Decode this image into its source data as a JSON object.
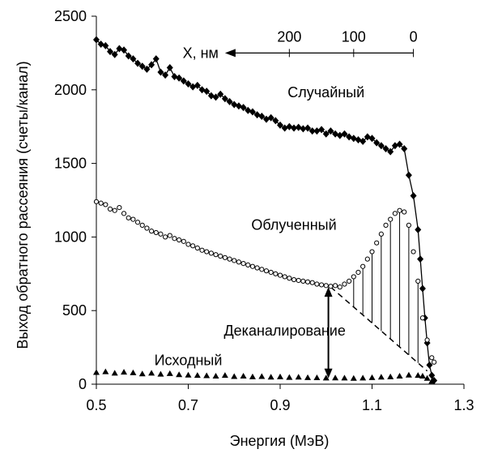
{
  "chart_data": {
    "type": "scatter",
    "title": "",
    "xlabel": "Энергия (МэВ)",
    "ylabel": "Выход обратного рассеяния (счеты/канал)",
    "xlim": [
      0.5,
      1.3
    ],
    "ylim": [
      0,
      2500
    ],
    "x_ticks": [
      "0.5",
      "0.7",
      "0.9",
      "1.1",
      "1.3"
    ],
    "y_ticks": [
      "0",
      "500",
      "1000",
      "1500",
      "2000",
      "2500"
    ],
    "grid": false,
    "series": [
      {
        "name": "Случайный",
        "marker": "diamond",
        "connected": true,
        "points": [
          [
            0.5,
            2340
          ],
          [
            0.51,
            2310
          ],
          [
            0.52,
            2300
          ],
          [
            0.53,
            2260
          ],
          [
            0.54,
            2240
          ],
          [
            0.55,
            2280
          ],
          [
            0.56,
            2270
          ],
          [
            0.57,
            2230
          ],
          [
            0.58,
            2210
          ],
          [
            0.59,
            2180
          ],
          [
            0.6,
            2160
          ],
          [
            0.61,
            2140
          ],
          [
            0.62,
            2170
          ],
          [
            0.63,
            2210
          ],
          [
            0.64,
            2120
          ],
          [
            0.65,
            2100
          ],
          [
            0.66,
            2150
          ],
          [
            0.67,
            2090
          ],
          [
            0.68,
            2080
          ],
          [
            0.69,
            2060
          ],
          [
            0.7,
            2040
          ],
          [
            0.71,
            2020
          ],
          [
            0.72,
            2030
          ],
          [
            0.73,
            2000
          ],
          [
            0.74,
            1990
          ],
          [
            0.75,
            1960
          ],
          [
            0.76,
            1950
          ],
          [
            0.77,
            1970
          ],
          [
            0.78,
            1940
          ],
          [
            0.79,
            1920
          ],
          [
            0.8,
            1900
          ],
          [
            0.81,
            1890
          ],
          [
            0.82,
            1880
          ],
          [
            0.83,
            1860
          ],
          [
            0.84,
            1850
          ],
          [
            0.85,
            1830
          ],
          [
            0.86,
            1820
          ],
          [
            0.87,
            1800
          ],
          [
            0.88,
            1810
          ],
          [
            0.89,
            1790
          ],
          [
            0.9,
            1760
          ],
          [
            0.91,
            1740
          ],
          [
            0.92,
            1750
          ],
          [
            0.93,
            1740
          ],
          [
            0.94,
            1745
          ],
          [
            0.95,
            1735
          ],
          [
            0.96,
            1740
          ],
          [
            0.97,
            1720
          ],
          [
            0.98,
            1720
          ],
          [
            0.99,
            1730
          ],
          [
            1.0,
            1700
          ],
          [
            1.01,
            1720
          ],
          [
            1.02,
            1700
          ],
          [
            1.03,
            1690
          ],
          [
            1.04,
            1700
          ],
          [
            1.05,
            1680
          ],
          [
            1.06,
            1670
          ],
          [
            1.07,
            1660
          ],
          [
            1.08,
            1650
          ],
          [
            1.09,
            1680
          ],
          [
            1.1,
            1670
          ],
          [
            1.11,
            1640
          ],
          [
            1.12,
            1620
          ],
          [
            1.13,
            1600
          ],
          [
            1.14,
            1580
          ],
          [
            1.15,
            1620
          ],
          [
            1.16,
            1630
          ],
          [
            1.17,
            1600
          ],
          [
            1.18,
            1420
          ],
          [
            1.19,
            1280
          ],
          [
            1.2,
            1050
          ],
          [
            1.205,
            850
          ],
          [
            1.21,
            650
          ],
          [
            1.215,
            450
          ],
          [
            1.22,
            280
          ],
          [
            1.225,
            130
          ],
          [
            1.23,
            60
          ],
          [
            1.235,
            25
          ]
        ]
      },
      {
        "name": "Облученный",
        "marker": "circle",
        "connected": false,
        "points": [
          [
            0.5,
            1240
          ],
          [
            0.51,
            1230
          ],
          [
            0.52,
            1220
          ],
          [
            0.53,
            1190
          ],
          [
            0.54,
            1180
          ],
          [
            0.55,
            1200
          ],
          [
            0.56,
            1160
          ],
          [
            0.57,
            1130
          ],
          [
            0.58,
            1120
          ],
          [
            0.59,
            1100
          ],
          [
            0.6,
            1080
          ],
          [
            0.61,
            1060
          ],
          [
            0.62,
            1040
          ],
          [
            0.63,
            1030
          ],
          [
            0.64,
            1020
          ],
          [
            0.65,
            1000
          ],
          [
            0.66,
            1010
          ],
          [
            0.67,
            990
          ],
          [
            0.68,
            980
          ],
          [
            0.69,
            970
          ],
          [
            0.7,
            950
          ],
          [
            0.71,
            940
          ],
          [
            0.72,
            925
          ],
          [
            0.73,
            910
          ],
          [
            0.74,
            900
          ],
          [
            0.75,
            890
          ],
          [
            0.76,
            880
          ],
          [
            0.77,
            870
          ],
          [
            0.78,
            860
          ],
          [
            0.79,
            850
          ],
          [
            0.8,
            840
          ],
          [
            0.81,
            830
          ],
          [
            0.82,
            820
          ],
          [
            0.83,
            810
          ],
          [
            0.84,
            800
          ],
          [
            0.85,
            790
          ],
          [
            0.86,
            780
          ],
          [
            0.87,
            770
          ],
          [
            0.88,
            760
          ],
          [
            0.89,
            750
          ],
          [
            0.9,
            740
          ],
          [
            0.91,
            730
          ],
          [
            0.92,
            720
          ],
          [
            0.93,
            710
          ],
          [
            0.94,
            705
          ],
          [
            0.95,
            700
          ],
          [
            0.96,
            695
          ],
          [
            0.97,
            690
          ],
          [
            0.98,
            680
          ],
          [
            0.99,
            675
          ],
          [
            1.0,
            670
          ],
          [
            1.01,
            665
          ],
          [
            1.02,
            670
          ],
          [
            1.03,
            660
          ],
          [
            1.04,
            680
          ],
          [
            1.05,
            700
          ],
          [
            1.06,
            730
          ],
          [
            1.07,
            760
          ],
          [
            1.08,
            800
          ],
          [
            1.09,
            850
          ],
          [
            1.1,
            900
          ],
          [
            1.11,
            960
          ],
          [
            1.12,
            1020
          ],
          [
            1.13,
            1080
          ],
          [
            1.14,
            1120
          ],
          [
            1.15,
            1160
          ],
          [
            1.16,
            1180
          ],
          [
            1.17,
            1170
          ],
          [
            1.18,
            1080
          ],
          [
            1.19,
            900
          ],
          [
            1.2,
            700
          ],
          [
            1.21,
            450
          ],
          [
            1.22,
            300
          ],
          [
            1.23,
            180
          ],
          [
            1.235,
            150
          ]
        ]
      },
      {
        "name": "Исходный",
        "marker": "triangle",
        "connected": false,
        "points": [
          [
            0.5,
            80
          ],
          [
            0.52,
            85
          ],
          [
            0.54,
            75
          ],
          [
            0.56,
            82
          ],
          [
            0.58,
            78
          ],
          [
            0.6,
            70
          ],
          [
            0.62,
            75
          ],
          [
            0.64,
            68
          ],
          [
            0.66,
            72
          ],
          [
            0.68,
            65
          ],
          [
            0.7,
            62
          ],
          [
            0.72,
            60
          ],
          [
            0.74,
            58
          ],
          [
            0.76,
            55
          ],
          [
            0.78,
            60
          ],
          [
            0.8,
            52
          ],
          [
            0.82,
            55
          ],
          [
            0.84,
            50
          ],
          [
            0.86,
            52
          ],
          [
            0.88,
            48
          ],
          [
            0.9,
            50
          ],
          [
            0.92,
            46
          ],
          [
            0.94,
            48
          ],
          [
            0.96,
            45
          ],
          [
            0.98,
            44
          ],
          [
            1.0,
            42
          ],
          [
            1.02,
            43
          ],
          [
            1.04,
            42
          ],
          [
            1.06,
            40
          ],
          [
            1.08,
            42
          ],
          [
            1.1,
            45
          ],
          [
            1.12,
            48
          ],
          [
            1.14,
            50
          ],
          [
            1.16,
            55
          ],
          [
            1.18,
            62
          ],
          [
            1.2,
            60
          ],
          [
            1.21,
            55
          ],
          [
            1.22,
            40
          ],
          [
            1.23,
            20
          ]
        ]
      }
    ],
    "annotations": [
      {
        "id": "random",
        "text": "Случайный",
        "x": 1.0,
        "y": 1950
      },
      {
        "id": "irradiated",
        "text": "Облученный",
        "x": 0.93,
        "y": 1050
      },
      {
        "id": "original",
        "text": "Исходный",
        "x": 0.7,
        "y": 130
      },
      {
        "id": "dechanneling",
        "text": "Деканалирование",
        "x": 0.91,
        "y": 330
      }
    ],
    "dechanneling": {
      "arrow": {
        "x": 1.005,
        "y_from": 40,
        "y_to": 660
      },
      "dashed_line": {
        "from": [
          1.01,
          660
        ],
        "to": [
          1.22,
          90
        ]
      },
      "hatch_x": [
        1.06,
        1.08,
        1.1,
        1.12,
        1.14,
        1.16,
        1.18,
        1.2
      ]
    },
    "depth_scale": {
      "label": "X, нм",
      "ticks": [
        {
          "label": "200",
          "x": 0.92
        },
        {
          "label": "100",
          "x": 1.06
        },
        {
          "label": "0",
          "x": 1.19
        }
      ],
      "y": 2250,
      "x_from": 1.19,
      "x_to": 0.78
    }
  }
}
